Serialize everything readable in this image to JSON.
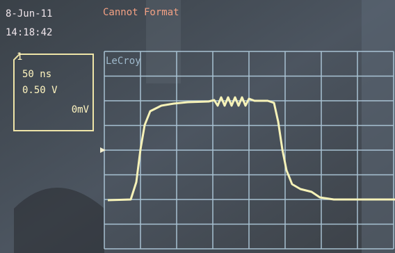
{
  "header": {
    "date": "8-Jun-11",
    "time": "14:18:42",
    "status": "Cannot Format"
  },
  "channel": {
    "number": "1",
    "timebase": "50 ns",
    "volts": "0.50 V",
    "offset": "0mV"
  },
  "brand": "LeCroy"
}
